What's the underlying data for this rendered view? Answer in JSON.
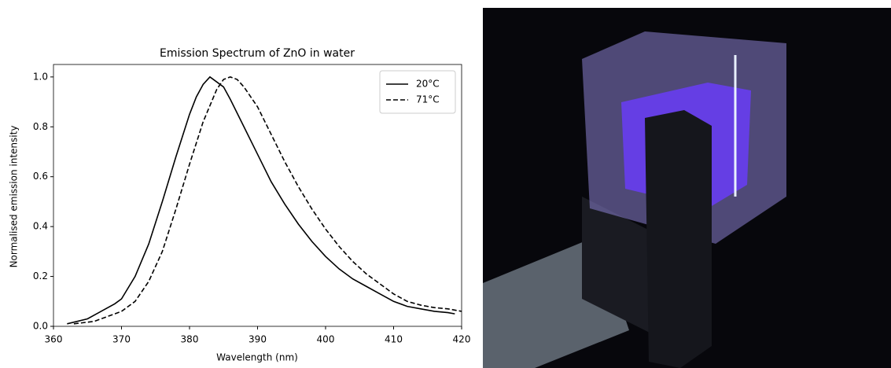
{
  "chart_data": {
    "type": "line",
    "title": "Emission Spectrum of ZnO in water",
    "x_label": "Wavelength (nm)",
    "y_label": "Normalised emission intensity",
    "xlim": [
      360,
      420
    ],
    "ylim": [
      0,
      1.05
    ],
    "xticks": [
      360,
      370,
      380,
      390,
      400,
      410,
      420
    ],
    "yticks": [
      {
        "value": 0,
        "label": "0.0"
      },
      0.2,
      0.4,
      0.6,
      0.8,
      {
        "value": 1,
        "label": "1.0"
      }
    ],
    "legend": "upper right",
    "series": [
      {
        "name": "20°C",
        "color": "#000000",
        "style": "solid",
        "x": [
          362,
          365,
          367,
          369,
          370,
          372,
          374,
          376,
          378,
          380,
          381,
          382,
          383,
          384,
          385,
          386,
          388,
          390,
          392,
          394,
          396,
          398,
          400,
          402,
          404,
          406,
          408,
          410,
          412,
          414,
          416,
          418,
          419
        ],
        "values": [
          0.01,
          0.03,
          0.06,
          0.09,
          0.11,
          0.2,
          0.33,
          0.5,
          0.68,
          0.85,
          0.92,
          0.97,
          1.0,
          0.98,
          0.96,
          0.91,
          0.8,
          0.69,
          0.58,
          0.49,
          0.41,
          0.34,
          0.28,
          0.23,
          0.19,
          0.16,
          0.13,
          0.1,
          0.08,
          0.07,
          0.06,
          0.055,
          0.05
        ]
      },
      {
        "name": "71°C",
        "color": "#000000",
        "style": "dashed",
        "x": [
          363,
          366,
          368,
          370,
          372,
          374,
          376,
          378,
          380,
          382,
          384,
          385,
          386,
          387,
          388,
          390,
          392,
          394,
          396,
          398,
          400,
          402,
          404,
          406,
          408,
          410,
          412,
          414,
          416,
          418,
          420
        ],
        "values": [
          0.01,
          0.02,
          0.04,
          0.06,
          0.1,
          0.18,
          0.3,
          0.47,
          0.65,
          0.82,
          0.95,
          0.99,
          1.0,
          0.99,
          0.96,
          0.88,
          0.77,
          0.66,
          0.56,
          0.47,
          0.39,
          0.32,
          0.26,
          0.21,
          0.17,
          0.13,
          0.1,
          0.085,
          0.075,
          0.07,
          0.06
        ]
      }
    ]
  }
}
